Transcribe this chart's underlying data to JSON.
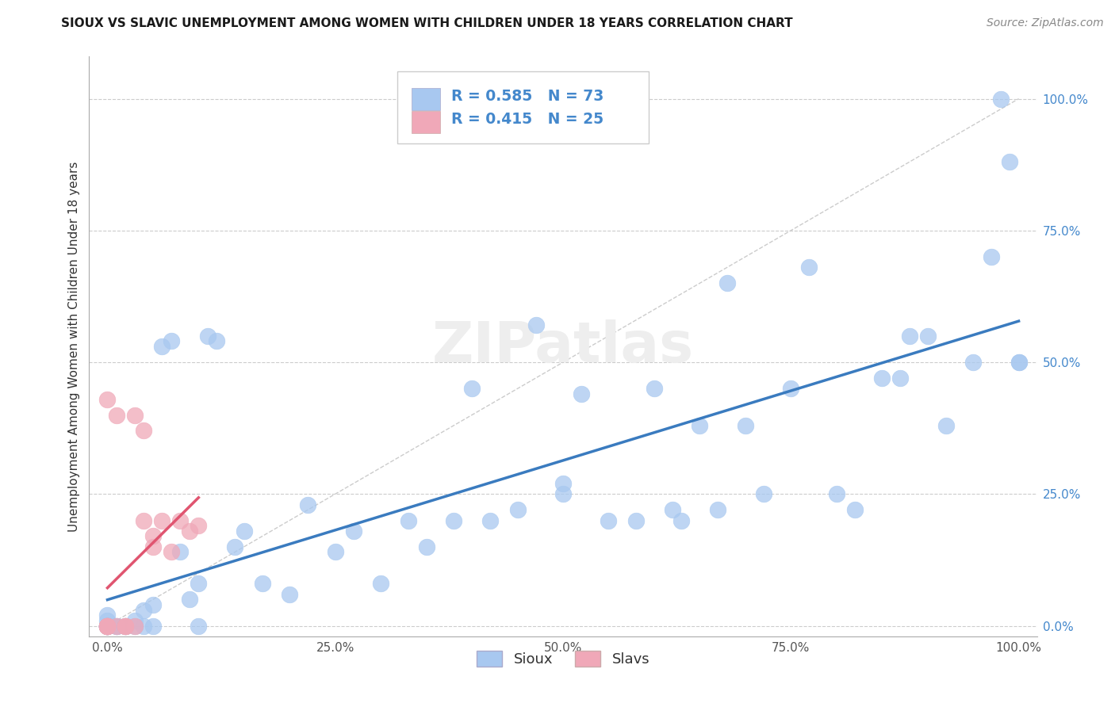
{
  "title": "SIOUX VS SLAVIC UNEMPLOYMENT AMONG WOMEN WITH CHILDREN UNDER 18 YEARS CORRELATION CHART",
  "source": "Source: ZipAtlas.com",
  "ylabel": "Unemployment Among Women with Children Under 18 years",
  "xlim": [
    -0.02,
    1.02
  ],
  "ylim": [
    -0.02,
    1.08
  ],
  "xticks": [
    0.0,
    0.25,
    0.5,
    0.75,
    1.0
  ],
  "yticks": [
    0.0,
    0.25,
    0.5,
    0.75,
    1.0
  ],
  "xticklabels": [
    "0.0%",
    "25.0%",
    "50.0%",
    "75.0%",
    "100.0%"
  ],
  "yticklabels": [
    "0.0%",
    "25.0%",
    "50.0%",
    "75.0%",
    "100.0%"
  ],
  "background_color": "#ffffff",
  "sioux_color": "#a8c8f0",
  "slavs_color": "#f0a8b8",
  "sioux_R": 0.585,
  "sioux_N": 73,
  "slavs_R": 0.415,
  "slavs_N": 25,
  "sioux_line_color": "#3a7bbf",
  "slavs_line_color": "#e05570",
  "diagonal_color": "#cccccc",
  "grid_color": "#cccccc",
  "tick_color": "#4488cc",
  "sioux_x": [
    0.0,
    0.0,
    0.0,
    0.0,
    0.0,
    0.0,
    0.0,
    0.0,
    0.0,
    0.0,
    0.01,
    0.01,
    0.01,
    0.02,
    0.02,
    0.02,
    0.03,
    0.03,
    0.04,
    0.04,
    0.05,
    0.05,
    0.06,
    0.07,
    0.08,
    0.09,
    0.1,
    0.1,
    0.11,
    0.12,
    0.14,
    0.15,
    0.17,
    0.2,
    0.22,
    0.25,
    0.27,
    0.3,
    0.33,
    0.35,
    0.38,
    0.4,
    0.42,
    0.45,
    0.47,
    0.5,
    0.5,
    0.52,
    0.55,
    0.58,
    0.6,
    0.62,
    0.63,
    0.65,
    0.67,
    0.68,
    0.7,
    0.72,
    0.75,
    0.77,
    0.8,
    0.82,
    0.85,
    0.87,
    0.88,
    0.9,
    0.92,
    0.95,
    0.97,
    0.98,
    0.99,
    1.0,
    1.0
  ],
  "sioux_y": [
    0.0,
    0.0,
    0.0,
    0.0,
    0.0,
    0.0,
    0.0,
    0.0,
    0.01,
    0.02,
    0.0,
    0.0,
    0.0,
    0.0,
    0.0,
    0.0,
    0.0,
    0.01,
    0.0,
    0.03,
    0.0,
    0.04,
    0.53,
    0.54,
    0.14,
    0.05,
    0.0,
    0.08,
    0.55,
    0.54,
    0.15,
    0.18,
    0.08,
    0.06,
    0.23,
    0.14,
    0.18,
    0.08,
    0.2,
    0.15,
    0.2,
    0.45,
    0.2,
    0.22,
    0.57,
    0.25,
    0.27,
    0.44,
    0.2,
    0.2,
    0.45,
    0.22,
    0.2,
    0.38,
    0.22,
    0.65,
    0.38,
    0.25,
    0.45,
    0.68,
    0.25,
    0.22,
    0.47,
    0.47,
    0.55,
    0.55,
    0.38,
    0.5,
    0.7,
    1.0,
    0.88,
    0.5,
    0.5
  ],
  "slavs_x": [
    0.0,
    0.0,
    0.0,
    0.0,
    0.0,
    0.0,
    0.0,
    0.0,
    0.0,
    0.01,
    0.01,
    0.02,
    0.02,
    0.02,
    0.03,
    0.03,
    0.04,
    0.04,
    0.05,
    0.05,
    0.06,
    0.07,
    0.08,
    0.09,
    0.1
  ],
  "slavs_y": [
    0.0,
    0.0,
    0.0,
    0.0,
    0.0,
    0.0,
    0.0,
    0.0,
    0.43,
    0.0,
    0.4,
    0.0,
    0.0,
    0.0,
    0.0,
    0.4,
    0.37,
    0.2,
    0.15,
    0.17,
    0.2,
    0.14,
    0.2,
    0.18,
    0.19
  ]
}
